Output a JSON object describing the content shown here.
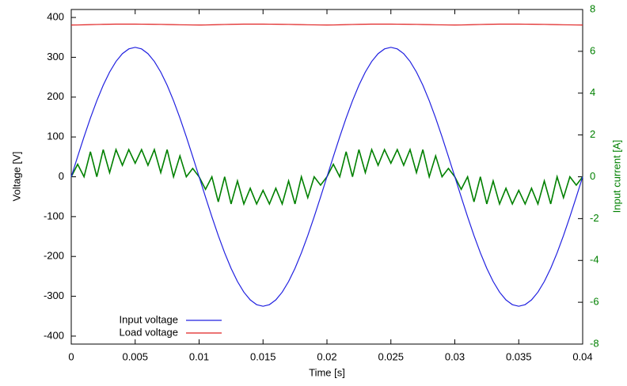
{
  "chart_data": {
    "type": "line",
    "xlabel": "Time [s]",
    "ylabel": "Voltage [V]",
    "y2label": "Input current [A]",
    "x": [
      0,
      0.0005,
      0.001,
      0.0015,
      0.002,
      0.0025,
      0.003,
      0.0035,
      0.004,
      0.0045,
      0.005,
      0.0055,
      0.006,
      0.0065,
      0.007,
      0.0075,
      0.008,
      0.0085,
      0.009,
      0.0095,
      0.01,
      0.0105,
      0.011,
      0.0115,
      0.012,
      0.0125,
      0.013,
      0.0135,
      0.014,
      0.0145,
      0.015,
      0.0155,
      0.016,
      0.0165,
      0.017,
      0.0175,
      0.018,
      0.0185,
      0.019,
      0.0195,
      0.02,
      0.0205,
      0.021,
      0.0215,
      0.022,
      0.0225,
      0.023,
      0.0235,
      0.024,
      0.0245,
      0.025,
      0.0255,
      0.026,
      0.0265,
      0.027,
      0.0275,
      0.028,
      0.0285,
      0.029,
      0.0295,
      0.03,
      0.0305,
      0.031,
      0.0315,
      0.032,
      0.0325,
      0.033,
      0.0335,
      0.034,
      0.0345,
      0.035,
      0.0355,
      0.036,
      0.0365,
      0.037,
      0.0375,
      0.038,
      0.0385,
      0.039,
      0.0395,
      0.04
    ],
    "series": [
      {
        "color": "#008000",
        "axis": "y2",
        "values": [
          0,
          0.6,
          0,
          1.2,
          0,
          1.3,
          0.2,
          1.3,
          0.55,
          1.3,
          0.65,
          1.3,
          0.55,
          1.3,
          0.2,
          1.3,
          0,
          1.0,
          0,
          0.4,
          0,
          -0.6,
          0,
          -1.2,
          0,
          -1.3,
          -0.2,
          -1.3,
          -0.55,
          -1.3,
          -0.65,
          -1.3,
          -0.55,
          -1.3,
          -0.2,
          -1.3,
          0,
          -1.0,
          0,
          -0.4,
          0,
          0.6,
          0,
          1.2,
          0,
          1.3,
          0.2,
          1.3,
          0.55,
          1.3,
          0.65,
          1.3,
          0.55,
          1.3,
          0.2,
          1.3,
          0,
          1.0,
          0,
          0.4,
          0,
          -0.6,
          0,
          -1.2,
          0,
          -1.3,
          -0.2,
          -1.3,
          -0.55,
          -1.3,
          -0.65,
          -1.3,
          -0.55,
          -1.3,
          -0.2,
          -1.3,
          0,
          -1.0,
          0,
          -0.4,
          0
        ]
      },
      {
        "name": "Input voltage",
        "color": "#2020e0",
        "values": [
          0,
          50.8,
          100.4,
          147.5,
          191.0,
          229.8,
          262.9,
          289.6,
          309.1,
          321.0,
          325,
          321.0,
          309.1,
          289.6,
          262.9,
          229.8,
          191.0,
          147.5,
          100.4,
          50.8,
          0,
          -50.8,
          -100.4,
          -147.5,
          -191.0,
          -229.8,
          -262.9,
          -289.6,
          -309.1,
          -321.0,
          -325,
          -321.0,
          -309.1,
          -289.6,
          -262.9,
          -229.8,
          -191.0,
          -147.5,
          -100.4,
          -50.8,
          0,
          50.8,
          100.4,
          147.5,
          191.0,
          229.8,
          262.9,
          289.6,
          309.1,
          321.0,
          325,
          321.0,
          309.1,
          289.6,
          262.9,
          229.8,
          191.0,
          147.5,
          100.4,
          50.8,
          0,
          -50.8,
          -100.4,
          -147.5,
          -191.0,
          -229.8,
          -262.9,
          -289.6,
          -309.1,
          -321.0,
          -325,
          -321.0,
          -309.1,
          -289.6,
          -262.9,
          -229.8,
          -191.0,
          -147.5,
          -100.4,
          -50.8,
          0
        ]
      },
      {
        "name": "Load voltage",
        "color": "#e02020",
        "values": [
          381.0,
          381.2,
          381.6,
          382.0,
          382.4,
          382.8,
          383.0,
          383.2,
          383.3,
          383.3,
          383.2,
          383.1,
          383.0,
          382.8,
          382.6,
          382.3,
          382.0,
          381.7,
          381.4,
          381.2,
          381.0,
          381.2,
          381.6,
          382.0,
          382.4,
          382.8,
          383.0,
          383.2,
          383.3,
          383.3,
          383.2,
          383.1,
          383.0,
          382.8,
          382.6,
          382.3,
          382.0,
          381.7,
          381.4,
          381.2,
          381.0,
          381.2,
          381.6,
          382.0,
          382.4,
          382.8,
          383.0,
          383.2,
          383.3,
          383.3,
          383.2,
          383.1,
          383.0,
          382.8,
          382.6,
          382.3,
          382.0,
          381.7,
          381.4,
          381.2,
          381.0,
          381.2,
          381.6,
          382.0,
          382.4,
          382.8,
          383.0,
          383.2,
          383.3,
          383.3,
          383.2,
          383.1,
          383.0,
          382.8,
          382.6,
          382.3,
          382.0,
          381.7,
          381.4,
          381.2,
          381.0
        ]
      }
    ],
    "xlim": [
      0,
      0.04
    ],
    "xticks": [
      0,
      0.005,
      0.01,
      0.015,
      0.02,
      0.025,
      0.03,
      0.035,
      0.04
    ],
    "ylim": [
      -420,
      420
    ],
    "yticks": [
      -400,
      -300,
      -200,
      -100,
      0,
      100,
      200,
      300,
      400
    ],
    "y2lim": [
      -8,
      8
    ],
    "y2ticks": [
      -8,
      -6,
      -4,
      -2,
      0,
      2,
      4,
      6,
      8
    ],
    "y2color": "#008000",
    "grid": false,
    "legend": "bottom left"
  }
}
